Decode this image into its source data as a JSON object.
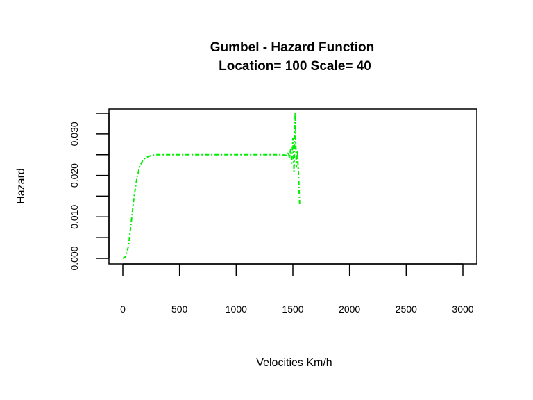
{
  "chart_data": {
    "type": "line",
    "title": "Gumbel - Hazard Function",
    "subtitle": "Location= 100  Scale= 40",
    "xlabel": "Velocities Km/h",
    "ylabel": "Hazard",
    "xlim": [
      0,
      3000
    ],
    "ylim": [
      0,
      0.035
    ],
    "x_ticks": [
      0,
      500,
      1000,
      1500,
      2000,
      2500,
      3000
    ],
    "x_tick_labels": [
      "0",
      "500",
      "1000",
      "1500",
      "2000",
      "2500",
      "3000"
    ],
    "y_ticks": [
      0,
      0.005,
      0.01,
      0.015,
      0.02,
      0.025,
      0.03,
      0.035
    ],
    "y_tick_labels": [
      "0.000",
      "",
      "0.010",
      "",
      "0.020",
      "",
      "0.030",
      ""
    ],
    "grid": false,
    "legend": "none",
    "series": [
      {
        "color": "#00ee00",
        "line_style": "dashdot",
        "x": [
          0,
          25,
          50,
          75,
          100,
          125,
          150,
          175,
          200,
          250,
          300,
          400,
          600,
          800,
          1000,
          1200,
          1400,
          1450,
          1460,
          1470,
          1480,
          1490,
          1500,
          1510,
          1520,
          1530,
          1540,
          1550,
          1560
        ],
        "y": [
          0.0,
          0.0004,
          0.003,
          0.009,
          0.015,
          0.0195,
          0.0222,
          0.0236,
          0.0243,
          0.0248,
          0.025,
          0.025,
          0.025,
          0.025,
          0.025,
          0.025,
          0.025,
          0.0248,
          0.0256,
          0.0242,
          0.0262,
          0.023,
          0.029,
          0.021,
          0.035,
          0.022,
          0.026,
          0.02,
          0.013
        ]
      }
    ]
  }
}
